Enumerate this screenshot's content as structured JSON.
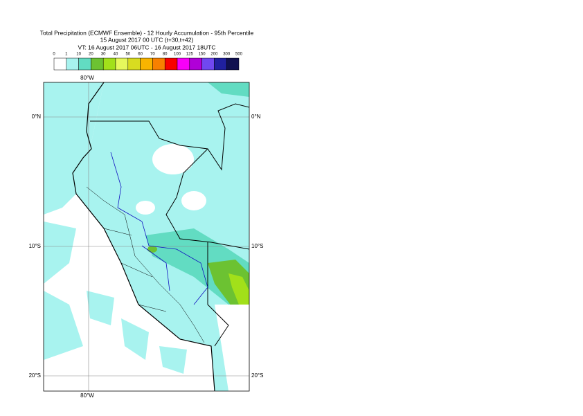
{
  "title": [
    "Total Precipitation (ECMWF Ensemble) - 12 Hourly Accumulation - 95th Percentile",
    "15 August 2017 00 UTC (t+30,t+42)",
    "VT: 16 August 2017 06UTC - 16 August 2017 18UTC"
  ],
  "colorbar": {
    "labels": [
      "0",
      "1",
      "10",
      "20",
      "30",
      "40",
      "50",
      "60",
      "70",
      "80",
      "100",
      "125",
      "150",
      "200",
      "300",
      "500"
    ],
    "colors": [
      "#ffffff",
      "#a8f3ef",
      "#62dcc2",
      "#6cc232",
      "#a2e01a",
      "#e6f85c",
      "#d8dc20",
      "#f8b400",
      "#f88000",
      "#f80000",
      "#f800f8",
      "#b000d8",
      "#7048f0",
      "#2020a0",
      "#101050"
    ]
  },
  "map": {
    "lon_labels": [
      "80°W"
    ],
    "lat_labels": [
      "0°N",
      "10°S",
      "20°S"
    ]
  }
}
